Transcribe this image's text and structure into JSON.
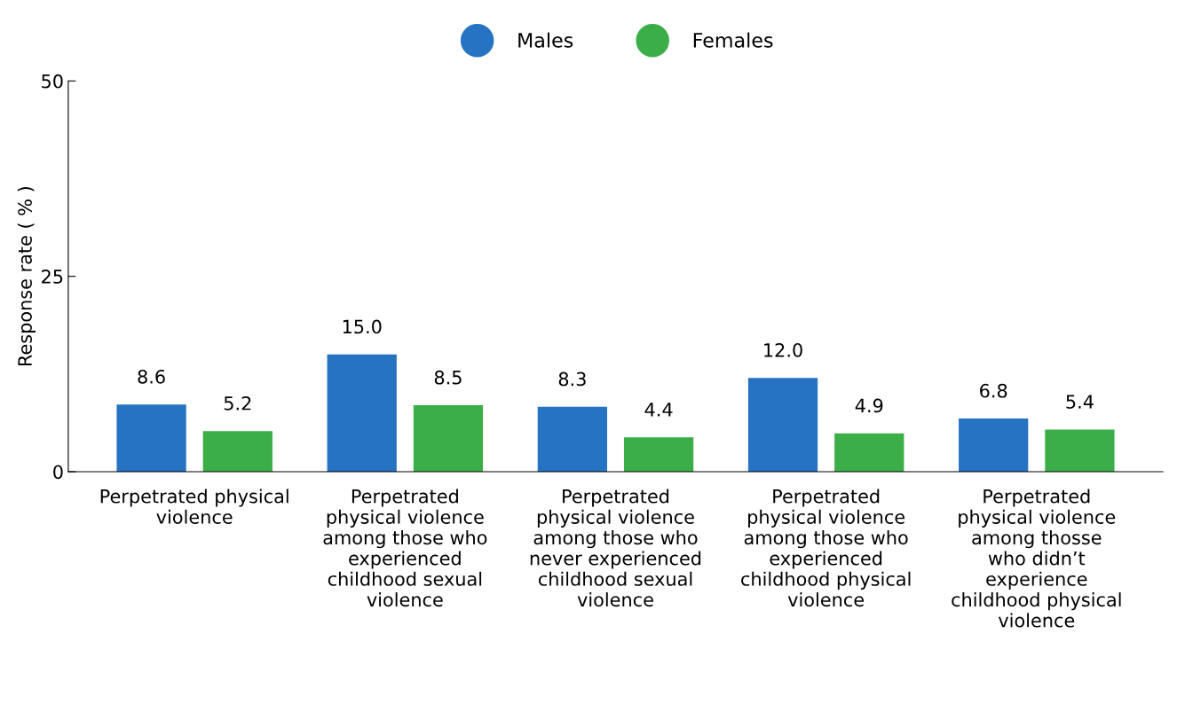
{
  "chart_data": {
    "type": "bar",
    "ylabel": "Response rate ( % )",
    "categories": [
      "Perpetrated physical\nviolence",
      "Perpetrated\nphysical violence\namong those who\nexperienced\nchildhood sexual\nviolence",
      "Perpetrated\nphysical violence\namong those who\nnever experienced\nchildhood sexual\nviolence",
      "Perpetrated\nphysical violence\namong those who\nexperienced\nchildhood physical\nviolence",
      "Perpetrated\nphysical violence\namong thosse\nwho didn’t\nexperience\nchildhood physical\nviolence"
    ],
    "series": [
      {
        "name": "Males",
        "color": "#2573c2",
        "values": [
          8.6,
          15.0,
          8.3,
          12.0,
          6.8
        ],
        "value_labels": [
          "8.6",
          "15.0",
          "8.3",
          "12.0",
          "6.8"
        ]
      },
      {
        "name": "Females",
        "color": "#3cae48",
        "values": [
          5.2,
          8.5,
          4.4,
          4.9,
          5.4
        ],
        "value_labels": [
          "5.2",
          "8.5",
          "4.4",
          "4.9",
          "5.4"
        ]
      }
    ],
    "ylim": [
      0,
      50
    ],
    "yticks": [
      0,
      25,
      50
    ],
    "grid": false,
    "legend": "top"
  }
}
